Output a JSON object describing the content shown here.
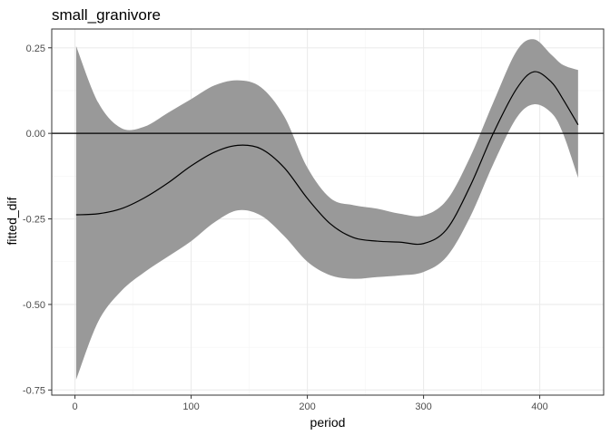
{
  "chart_data": {
    "type": "line",
    "title": "small_granivore",
    "xlabel": "period",
    "ylabel": "fitted_dif",
    "xlim": [
      -20,
      455
    ],
    "ylim": [
      -0.765,
      0.305
    ],
    "x_ticks": [
      0,
      100,
      200,
      300,
      400
    ],
    "x_tick_labels": [
      "0",
      "100",
      "200",
      "300",
      "400"
    ],
    "y_ticks": [
      -0.75,
      -0.5,
      -0.25,
      0,
      0.25
    ],
    "y_tick_labels": [
      "-0.75",
      "-0.50",
      "-0.25",
      "0.00",
      "0.25"
    ],
    "reference_line": 0,
    "grid": true,
    "series": [
      {
        "x": [
          1,
          20,
          40,
          60,
          80,
          100,
          120,
          140,
          160,
          180,
          200,
          220,
          240,
          260,
          280,
          300,
          320,
          340,
          360,
          380,
          395,
          410,
          420,
          433
        ],
        "fit": [
          -0.238,
          -0.235,
          -0.22,
          -0.188,
          -0.145,
          -0.095,
          -0.055,
          -0.035,
          -0.045,
          -0.1,
          -0.19,
          -0.265,
          -0.305,
          -0.315,
          -0.318,
          -0.322,
          -0.28,
          -0.155,
          0.0,
          0.13,
          0.18,
          0.15,
          0.1,
          0.025
        ],
        "lower": [
          -0.72,
          -0.55,
          -0.46,
          -0.405,
          -0.36,
          -0.315,
          -0.26,
          -0.225,
          -0.24,
          -0.3,
          -0.375,
          -0.415,
          -0.425,
          -0.42,
          -0.415,
          -0.405,
          -0.36,
          -0.245,
          -0.09,
          0.045,
          0.085,
          0.06,
          0.0,
          -0.13
        ],
        "upper": [
          0.255,
          0.09,
          0.015,
          0.02,
          0.06,
          0.1,
          0.14,
          0.155,
          0.135,
          0.05,
          -0.1,
          -0.19,
          -0.21,
          -0.22,
          -0.235,
          -0.24,
          -0.195,
          -0.07,
          0.09,
          0.24,
          0.275,
          0.23,
          0.2,
          0.185
        ]
      }
    ],
    "colors": {
      "ribbon": "#999999",
      "line": "#000000",
      "panel_border": "#333333",
      "grid_major": "#ebebeb",
      "grid_minor": "#f5f5f5",
      "tick_label": "#4d4d4d"
    }
  }
}
